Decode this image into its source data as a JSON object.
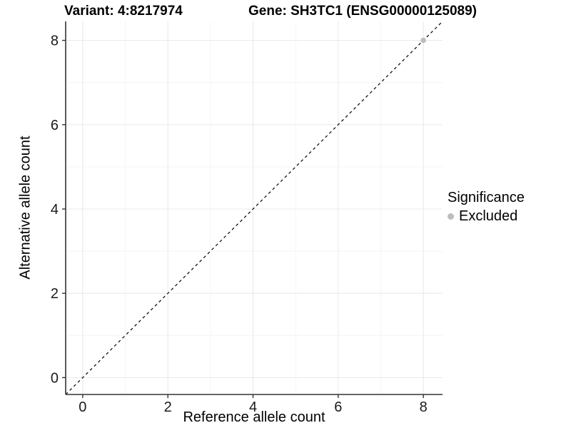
{
  "chart_data": {
    "type": "scatter",
    "title_left": "Variant: 4:8217974",
    "title_right": "Gene: SH3TC1 (ENSG00000125089)",
    "xlabel": "Reference allele count",
    "ylabel": "Alternative allele count",
    "xlim": [
      -0.4,
      8.45
    ],
    "ylim": [
      -0.4,
      8.45
    ],
    "xticks": [
      0,
      2,
      4,
      6,
      8
    ],
    "yticks": [
      0,
      2,
      4,
      6,
      8
    ],
    "minor_xticks": [
      1,
      3,
      5,
      7
    ],
    "minor_yticks": [
      1,
      3,
      5,
      7
    ],
    "grid": true,
    "identity_line": {
      "style": "dashed",
      "slope": 1,
      "intercept": 0,
      "from": -0.4,
      "to": 8.45
    },
    "series": [
      {
        "name": "Excluded",
        "color": "#bdbdbd",
        "points": [
          {
            "x": 8,
            "y": 8
          }
        ]
      }
    ],
    "legend": {
      "position": "right",
      "title": "Significance",
      "items": [
        {
          "label": "Excluded",
          "color": "#bdbdbd"
        }
      ]
    },
    "colors": {
      "background": "#ffffff",
      "panel_background": "#ffffff",
      "grid_major": "#e8e8e8",
      "grid_minor": "#f4f4f4",
      "axis_line": "#333333",
      "tick_label": "#1a1a1a",
      "identity_line": "#000000",
      "point": "#bdbdbd"
    }
  }
}
